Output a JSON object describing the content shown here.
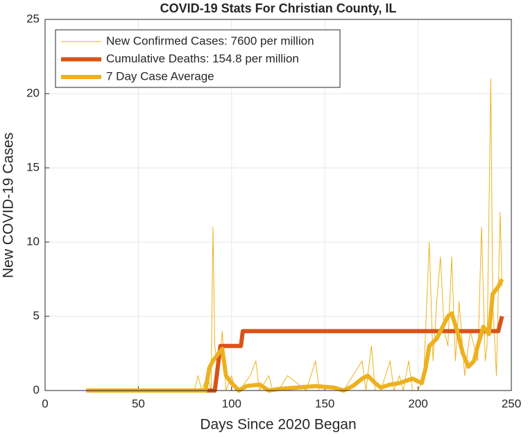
{
  "chart_data": {
    "type": "line",
    "title": "COVID-19 Stats For Christian County, IL",
    "x_label": "Days Since 2020 Began",
    "y_label": "New COVID-19 Cases",
    "xlim": [
      0,
      250
    ],
    "xticks": [
      0,
      50,
      100,
      150,
      200,
      250
    ],
    "ylim": [
      0,
      25
    ],
    "yticks": [
      0,
      5,
      10,
      15,
      20,
      25
    ],
    "grid": true,
    "legend": "upper left",
    "series": [
      {
        "name": "New Confirmed Cases: 7600 per million",
        "color": "#EDB120",
        "width": 1,
        "x": [
          22,
          80,
          82,
          84,
          87,
          89,
          90,
          91,
          93,
          95,
          97,
          100,
          102,
          104,
          110,
          113,
          115,
          120,
          122,
          125,
          130,
          140,
          145,
          147,
          150,
          160,
          165,
          170,
          172,
          175,
          177,
          180,
          185,
          187,
          190,
          192,
          195,
          197,
          200,
          203,
          206,
          208,
          210,
          212,
          214,
          216,
          218,
          220,
          222,
          225,
          228,
          230,
          232,
          234,
          236,
          237,
          239,
          240,
          242,
          244,
          245
        ],
        "values": [
          0,
          0,
          1,
          0,
          1,
          0,
          11,
          3,
          1,
          4,
          0,
          1,
          0,
          0,
          1,
          2,
          0,
          1,
          0,
          0,
          1,
          0,
          2,
          0,
          0,
          0,
          1,
          2,
          0,
          3,
          0,
          0,
          2,
          0,
          1,
          0,
          2,
          0,
          0,
          1,
          10,
          2,
          6,
          9,
          4,
          3,
          9,
          2,
          6,
          1,
          4,
          3,
          2,
          11,
          2,
          3,
          21,
          6,
          1,
          12,
          7
        ]
      },
      {
        "name": "Cumulative Deaths: 154.8 per million",
        "color": "#D95319",
        "width": 6,
        "x": [
          22,
          91,
          92,
          93,
          94,
          104,
          105,
          106,
          107,
          243,
          244,
          245
        ],
        "values": [
          0,
          0,
          1,
          2,
          3,
          3,
          3,
          4,
          4,
          4,
          4.5,
          5
        ]
      },
      {
        "name": "7 Day Case Average",
        "color": "#EDB120",
        "width": 6,
        "x": [
          22,
          86,
          88,
          90,
          93,
          95,
          97,
          100,
          104,
          108,
          115,
          120,
          125,
          135,
          145,
          155,
          160,
          165,
          170,
          173,
          177,
          180,
          185,
          190,
          197,
          202,
          204,
          206,
          210,
          212,
          216,
          218,
          221,
          224,
          227,
          230,
          232,
          235,
          238,
          240,
          243,
          245
        ],
        "values": [
          0,
          0,
          1.5,
          2,
          2.5,
          2.8,
          1,
          0.5,
          0,
          0.3,
          0.4,
          0,
          0.1,
          0.2,
          0.3,
          0.2,
          0,
          0.3,
          0.8,
          1,
          0.5,
          0.2,
          0.4,
          0.5,
          0.8,
          0.5,
          1.5,
          3,
          3.5,
          4,
          5,
          5.2,
          4,
          2.5,
          1.6,
          2,
          3,
          4.3,
          3.8,
          6.5,
          7,
          7.5
        ]
      }
    ]
  }
}
